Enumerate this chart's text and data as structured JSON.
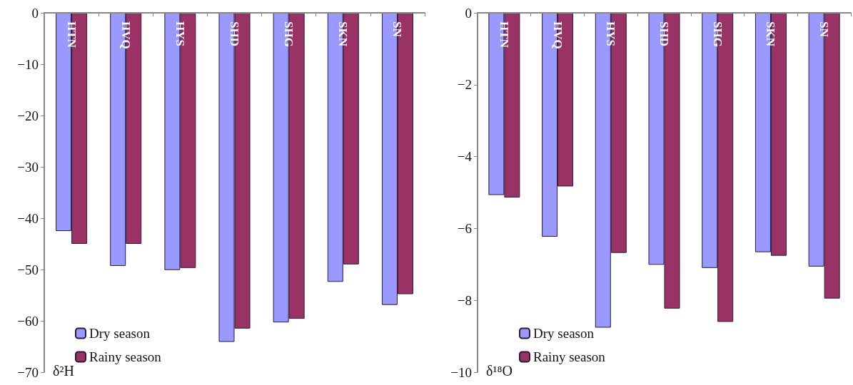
{
  "chart_data": [
    {
      "type": "bar",
      "categories": [
        "HTN",
        "HVQ",
        "HYS",
        "SHD",
        "SHG",
        "SKN",
        "SN"
      ],
      "series": [
        {
          "name": "Dry season",
          "color": "#9999ff",
          "values": [
            -42.5,
            -49.3,
            -50.1,
            -64.1,
            -60.3,
            -52.4,
            -56.9
          ]
        },
        {
          "name": "Rainy season",
          "color": "#993366",
          "values": [
            -45.0,
            -45.0,
            -49.7,
            -61.5,
            -59.6,
            -49.0,
            -54.8
          ]
        }
      ],
      "ylabel": "δ²H",
      "ylim": [
        -70,
        0
      ],
      "yticks": [
        {
          "value": -70,
          "label": "−70"
        },
        {
          "value": -60,
          "label": "−60"
        },
        {
          "value": -50,
          "label": "−50"
        },
        {
          "value": -40,
          "label": "−40"
        },
        {
          "value": -30,
          "label": "−30"
        },
        {
          "value": -20,
          "label": "−20"
        },
        {
          "value": -10,
          "label": "−10"
        },
        0
      ],
      "grid": false,
      "legend": "bottom left"
    },
    {
      "type": "bar",
      "categories": [
        "HTN",
        "HVQ",
        "HYS",
        "SHD",
        "SHG",
        "SKN",
        "SN"
      ],
      "series": [
        {
          "name": "Dry season",
          "color": "#9999ff",
          "values": [
            -5.07,
            -6.23,
            -8.76,
            -7.01,
            -7.1,
            -6.66,
            -7.06
          ]
        },
        {
          "name": "Rainy season",
          "color": "#993366",
          "values": [
            -5.14,
            -4.83,
            -6.68,
            -8.23,
            -8.6,
            -6.76,
            -7.95
          ]
        }
      ],
      "ylabel": "δ¹⁸O",
      "ylim": [
        -10,
        0
      ],
      "yticks": [
        {
          "value": -10,
          "label": "−10"
        },
        {
          "value": -8,
          "label": "−8"
        },
        {
          "value": -6,
          "label": "−6"
        },
        {
          "value": -4,
          "label": "−4"
        },
        {
          "value": -2,
          "label": "−2"
        },
        0
      ],
      "grid": false,
      "legend": "bottom left"
    }
  ]
}
